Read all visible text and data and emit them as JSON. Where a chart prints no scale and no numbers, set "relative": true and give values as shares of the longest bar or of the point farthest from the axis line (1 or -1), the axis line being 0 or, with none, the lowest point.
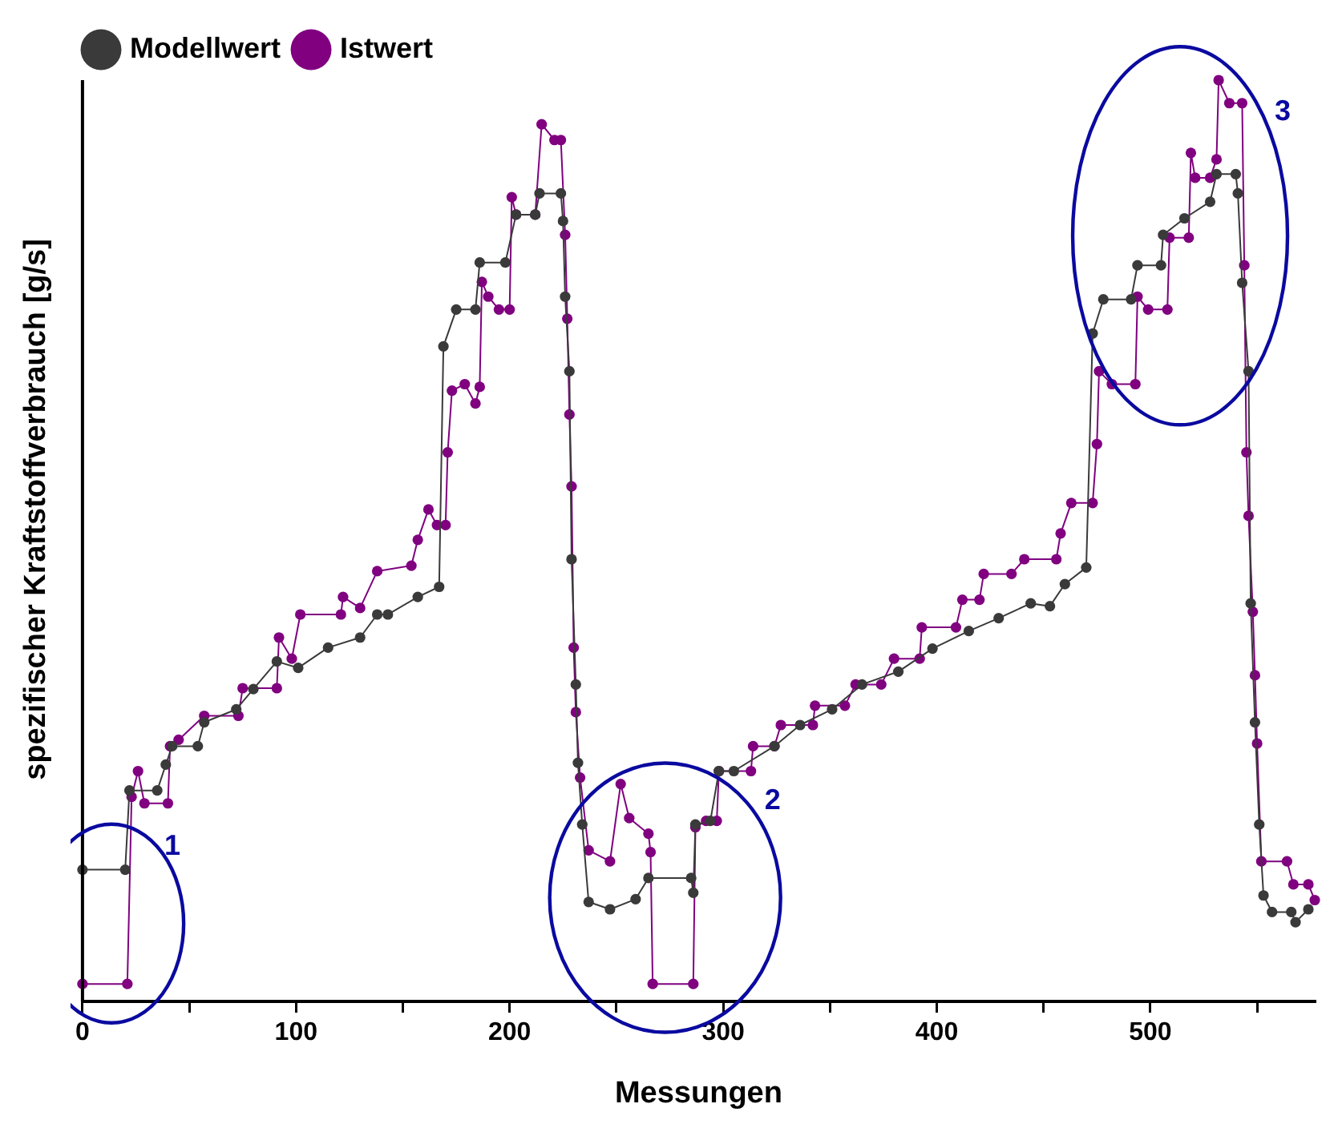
{
  "chart_data": {
    "type": "line",
    "xlabel": "Messungen",
    "ylabel": "spezifischer Kraftstoffverbrauch [g/s]",
    "relative": true,
    "xlim": [
      0,
      577
    ],
    "xticks": [
      0,
      {
        "value": 50,
        "label": null
      },
      100,
      {
        "value": 150,
        "label": null
      },
      200,
      {
        "value": 250,
        "label": null
      },
      300,
      {
        "value": 350,
        "label": null
      },
      400,
      {
        "value": 450,
        "label": null
      },
      500,
      {
        "value": 550,
        "label": null
      }
    ],
    "tick_labels": "x",
    "legend": "top left",
    "marker": "circle",
    "line_style": "solid",
    "series": [
      {
        "name": "Modellwert",
        "color": "#3a3a3a",
        "x": [
          0,
          20,
          22,
          35,
          39,
          42,
          54,
          57,
          72,
          80,
          91,
          101,
          115,
          130,
          138,
          143,
          157,
          167,
          169,
          175,
          184,
          186,
          198,
          203,
          212,
          214,
          224,
          225,
          226,
          228,
          229,
          231,
          232,
          234,
          237,
          247,
          259,
          265,
          285,
          286,
          287,
          294,
          298,
          305,
          324,
          336,
          351,
          365,
          382,
          398,
          415,
          429,
          444,
          453,
          460,
          470,
          473,
          478,
          491,
          494,
          505,
          506,
          516,
          528,
          531,
          540,
          541,
          543,
          546,
          547,
          549,
          551,
          553,
          557,
          566,
          568,
          574
        ],
        "values": [
          0.143,
          0.143,
          0.229,
          0.229,
          0.257,
          0.277,
          0.277,
          0.303,
          0.317,
          0.339,
          0.369,
          0.362,
          0.384,
          0.395,
          0.42,
          0.42,
          0.439,
          0.45,
          0.711,
          0.751,
          0.751,
          0.802,
          0.802,
          0.854,
          0.854,
          0.877,
          0.877,
          0.847,
          0.765,
          0.684,
          0.48,
          0.344,
          0.259,
          0.192,
          0.108,
          0.1,
          0.111,
          0.134,
          0.134,
          0.118,
          0.192,
          0.196,
          0.25,
          0.25,
          0.277,
          0.3,
          0.317,
          0.344,
          0.358,
          0.383,
          0.402,
          0.416,
          0.432,
          0.429,
          0.453,
          0.471,
          0.725,
          0.762,
          0.762,
          0.799,
          0.799,
          0.832,
          0.85,
          0.868,
          0.898,
          0.898,
          0.877,
          0.78,
          0.684,
          0.432,
          0.303,
          0.192,
          0.115,
          0.097,
          0.097,
          0.086,
          0.1
        ]
      },
      {
        "name": "Istwert",
        "color": "#800080",
        "x": [
          0,
          21,
          23,
          26,
          29,
          40,
          41,
          45,
          57,
          73,
          75,
          91,
          92,
          98,
          102,
          121,
          122,
          130,
          138,
          154,
          157,
          162,
          166,
          170,
          171,
          173,
          179,
          184,
          186,
          187,
          190,
          195,
          200,
          201,
          203,
          212,
          215,
          221,
          224,
          226,
          227,
          228,
          229,
          230,
          231,
          233,
          237,
          247,
          252,
          256,
          265,
          266,
          267,
          286,
          287,
          292,
          297,
          298,
          313,
          314,
          324,
          327,
          342,
          343,
          357,
          362,
          374,
          380,
          392,
          393,
          409,
          412,
          420,
          422,
          435,
          441,
          456,
          458,
          463,
          473,
          475,
          476,
          482,
          493,
          494,
          499,
          508,
          509,
          518,
          519,
          521,
          528,
          531,
          532,
          537,
          543,
          544,
          545,
          546,
          548,
          549,
          550,
          552,
          564,
          567,
          574,
          577
        ],
        "values": [
          0.019,
          0.019,
          0.222,
          0.25,
          0.215,
          0.215,
          0.277,
          0.284,
          0.31,
          0.31,
          0.34,
          0.34,
          0.395,
          0.372,
          0.42,
          0.42,
          0.439,
          0.427,
          0.467,
          0.473,
          0.501,
          0.534,
          0.517,
          0.517,
          0.596,
          0.663,
          0.67,
          0.649,
          0.667,
          0.781,
          0.765,
          0.751,
          0.751,
          0.873,
          0.854,
          0.854,
          0.952,
          0.935,
          0.935,
          0.832,
          0.741,
          0.637,
          0.559,
          0.384,
          0.314,
          0.243,
          0.164,
          0.152,
          0.236,
          0.199,
          0.182,
          0.162,
          0.019,
          0.019,
          0.189,
          0.196,
          0.196,
          0.25,
          0.25,
          0.277,
          0.277,
          0.3,
          0.3,
          0.321,
          0.321,
          0.344,
          0.344,
          0.372,
          0.372,
          0.406,
          0.406,
          0.436,
          0.436,
          0.464,
          0.464,
          0.48,
          0.48,
          0.508,
          0.541,
          0.541,
          0.605,
          0.684,
          0.67,
          0.67,
          0.765,
          0.751,
          0.751,
          0.829,
          0.829,
          0.921,
          0.894,
          0.894,
          0.914,
          1,
          0.975,
          0.975,
          0.799,
          0.596,
          0.527,
          0.423,
          0.354,
          0.28,
          0.152,
          0.152,
          0.127,
          0.127,
          0.11
        ]
      }
    ],
    "annotations": [
      "1",
      "2",
      "3"
    ]
  }
}
